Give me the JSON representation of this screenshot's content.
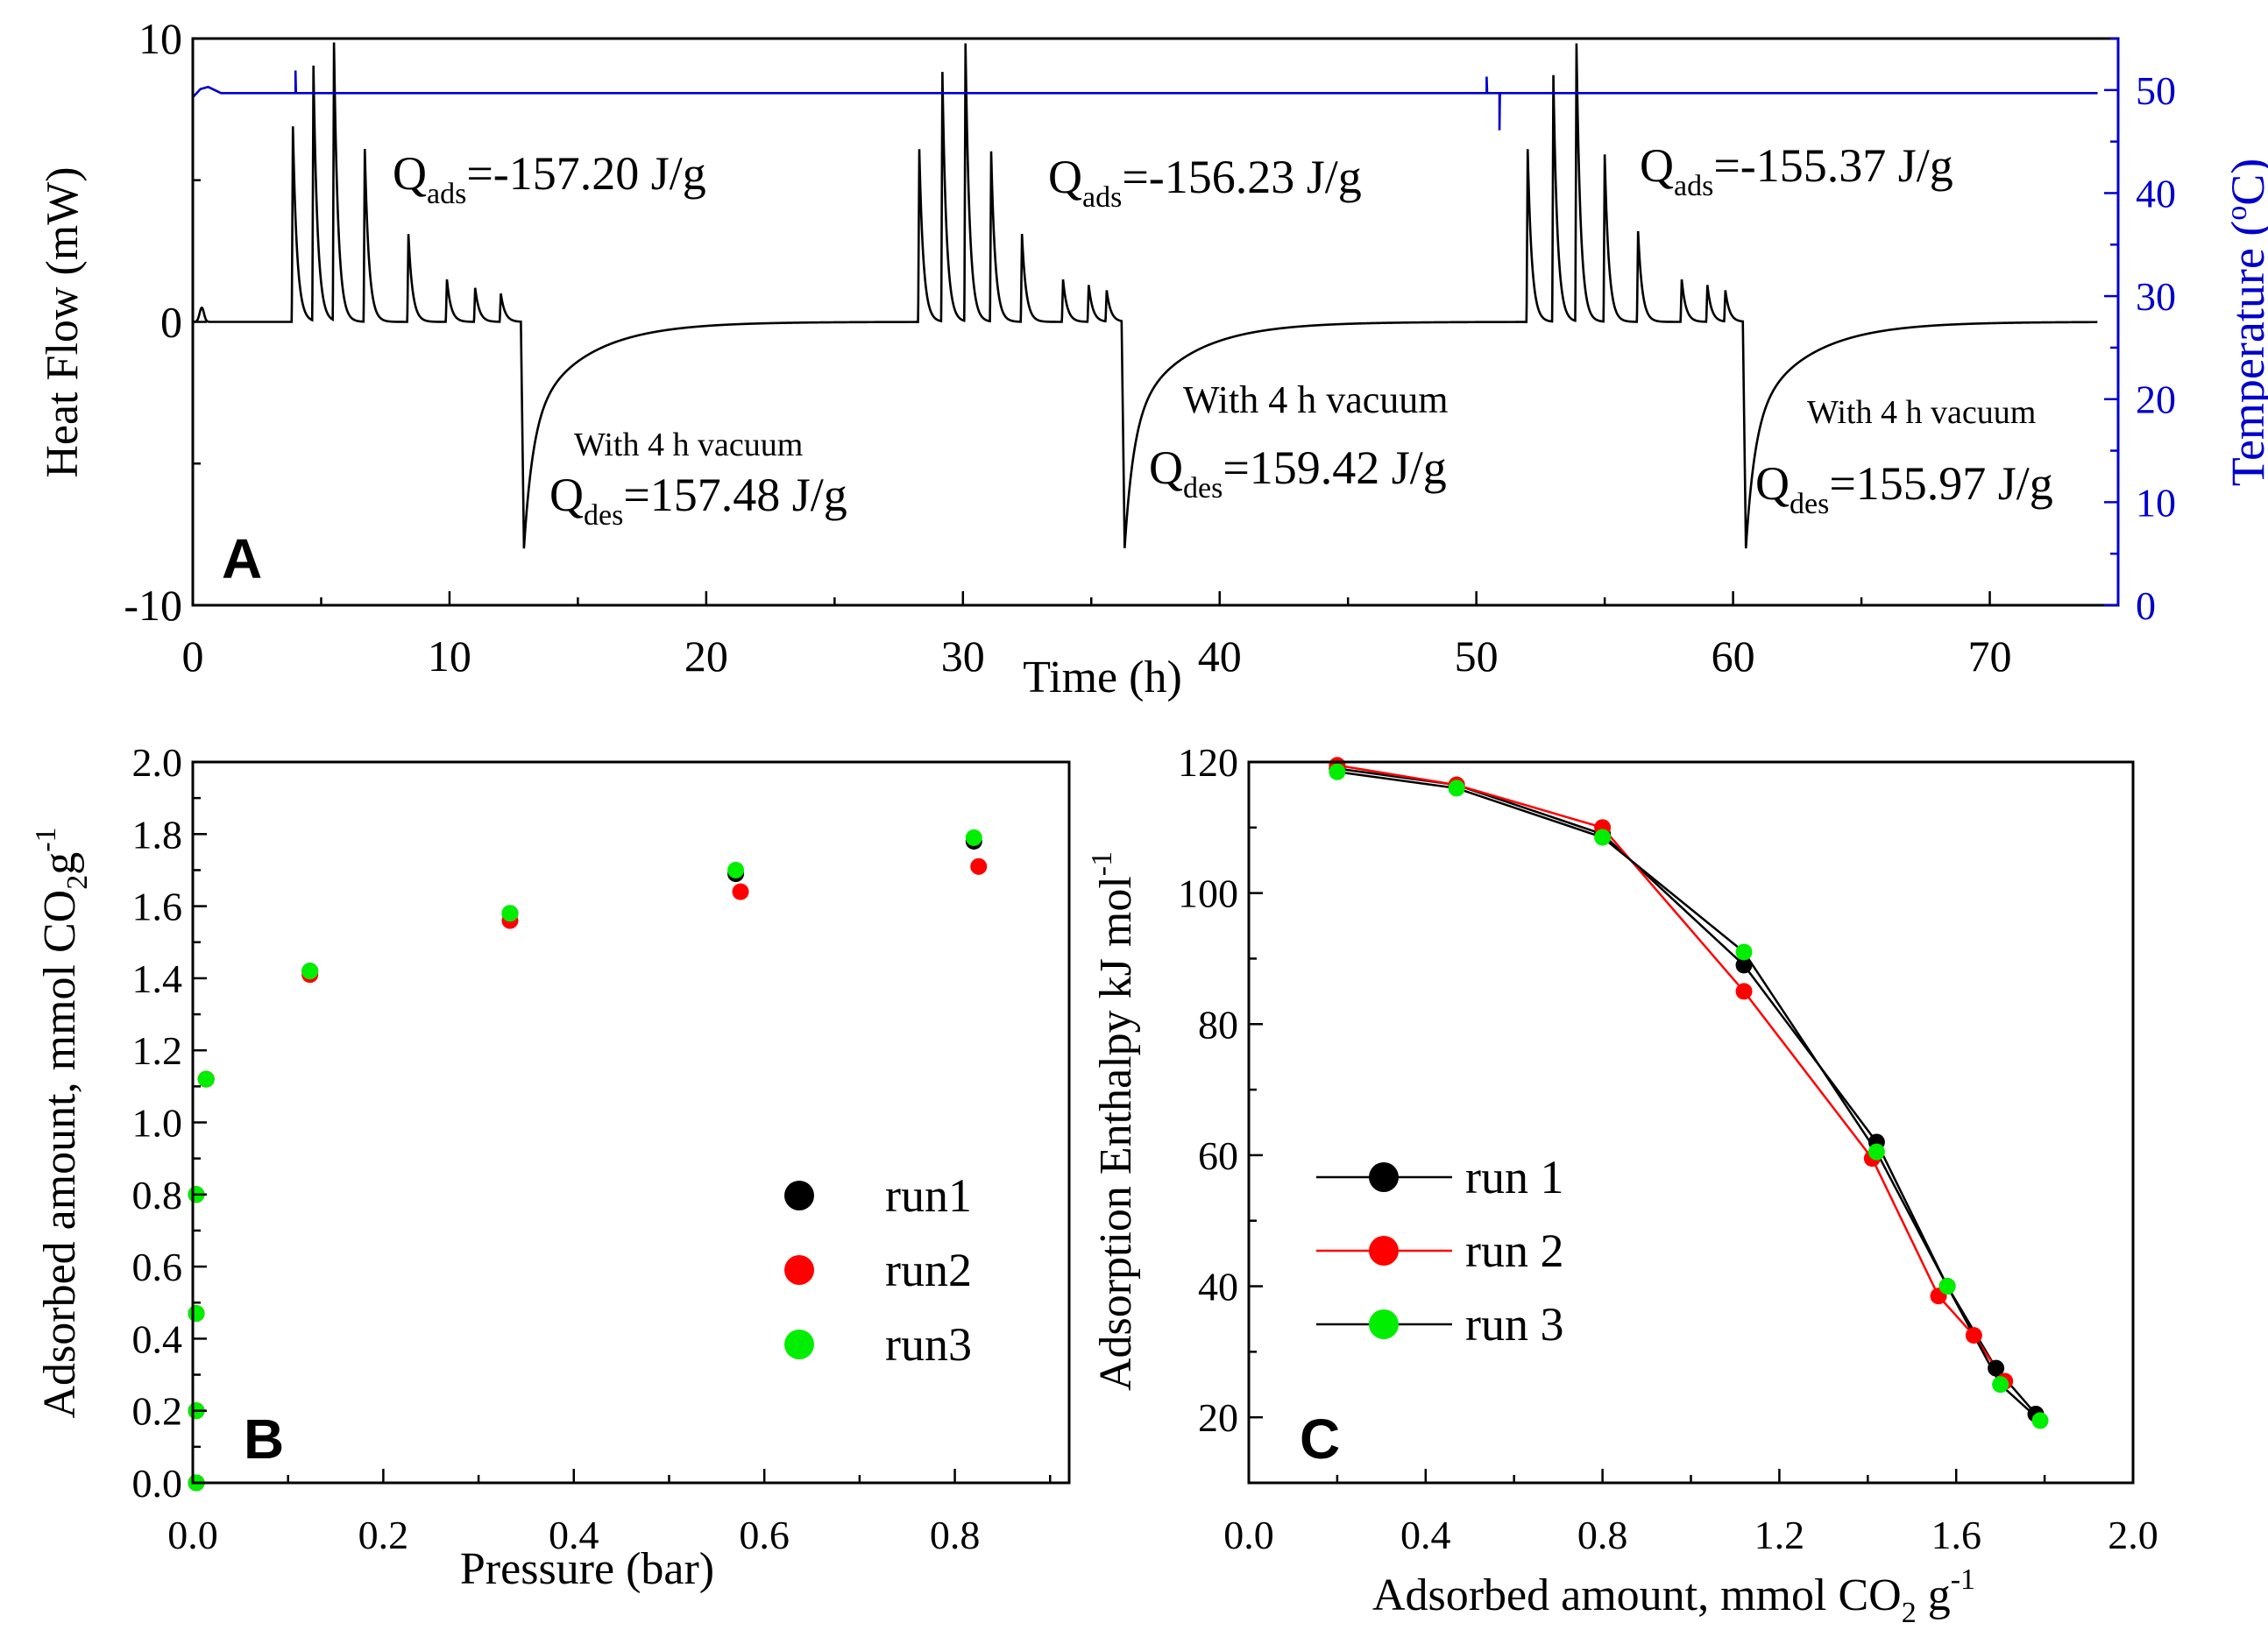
{
  "chart_data": [
    {
      "id": "A",
      "type": "line",
      "panel_label": "A",
      "xlabel": "Time (h)",
      "ylabel": "Heat Flow (mW)",
      "y2label_main": "Temperature (",
      "y2label_sup": "o",
      "y2label_end": "C)",
      "xlim": [
        0,
        75
      ],
      "ylim": [
        -10,
        10
      ],
      "y2lim": [
        0,
        55
      ],
      "xticks": [
        0,
        10,
        20,
        30,
        40,
        50,
        60,
        70
      ],
      "yticks": [
        -10,
        0,
        10
      ],
      "y2ticks": [
        0,
        10,
        20,
        30,
        40,
        50
      ],
      "temperature_baseline": 49.7,
      "cycles": [
        {
          "start": 3.6,
          "peak_times": [
            3.9,
            4.7,
            5.5,
            6.7,
            8.4,
            9.9,
            11.0,
            12.0
          ],
          "peak_heights": [
            6.9,
            9.0,
            9.8,
            6.1,
            3.1,
            1.5,
            1.2,
            1.0
          ],
          "desorption_time": 12.9,
          "desorption_min": -8.0
        },
        {
          "start": 28.0,
          "peak_times": [
            28.3,
            29.2,
            30.1,
            31.1,
            32.3,
            33.9,
            34.9,
            35.6
          ],
          "peak_heights": [
            6.1,
            8.8,
            9.8,
            6.0,
            3.1,
            1.5,
            1.3,
            1.1
          ],
          "desorption_time": 36.3,
          "desorption_min": -8.0
        },
        {
          "start": 51.7,
          "peak_times": [
            52.0,
            53.0,
            53.9,
            55.0,
            56.3,
            58.0,
            59.0,
            59.7
          ],
          "peak_heights": [
            6.1,
            8.7,
            9.8,
            5.9,
            3.2,
            1.5,
            1.3,
            1.1
          ],
          "desorption_time": 60.5,
          "desorption_min": -8.0
        }
      ],
      "annotations": [
        {
          "main": "Q",
          "sub": "ads",
          "value": "=-157.20 J/g"
        },
        {
          "main": "Q",
          "sub": "ads",
          "value": "=-156.23 J/g"
        },
        {
          "main": "Q",
          "sub": "ads",
          "value": "=-155.37 J/g"
        },
        {
          "main": "Q",
          "sub": "des",
          "value": "=157.48 J/g",
          "note": "With 4 h vacuum"
        },
        {
          "main": "Q",
          "sub": "des",
          "value": "=159.42 J/g",
          "note": "With 4 h vacuum"
        },
        {
          "main": "Q",
          "sub": "des",
          "value": "=155.97 J/g",
          "note": "With 4 h vacuum"
        }
      ],
      "colors": {
        "heat_flow": "#000000",
        "temperature": "#0000cc"
      }
    },
    {
      "id": "B",
      "type": "scatter",
      "panel_label": "B",
      "xlabel": "Pressure (bar)",
      "ylabel_main": "Adsorbed amount, mmol CO",
      "ylabel_sub": "2",
      "ylabel_end": "g",
      "ylabel_sup": "-1",
      "xlim": [
        0,
        0.92
      ],
      "ylim": [
        0,
        2.0
      ],
      "xticks": [
        0.0,
        0.2,
        0.4,
        0.6,
        0.8
      ],
      "yticks": [
        0.0,
        0.2,
        0.4,
        0.6,
        0.8,
        1.0,
        1.2,
        1.4,
        1.6,
        1.8,
        2.0
      ],
      "series": [
        {
          "name": "run1",
          "color": "#000000",
          "x": [
            0.0,
            0.0,
            0.0,
            0.0,
            0.014,
            0.123,
            0.333,
            0.57,
            0.82
          ],
          "y": [
            0.0,
            0.2,
            0.47,
            0.8,
            1.12,
            1.42,
            1.58,
            1.69,
            1.78
          ]
        },
        {
          "name": "run2",
          "color": "#ff0000",
          "x": [
            0.0,
            0.0,
            0.0,
            0.0,
            0.014,
            0.123,
            0.333,
            0.575,
            0.825
          ],
          "y": [
            0.0,
            0.2,
            0.47,
            0.8,
            1.12,
            1.41,
            1.56,
            1.64,
            1.71
          ]
        },
        {
          "name": "run3",
          "color": "#00ee00",
          "x": [
            0.0,
            0.0,
            0.0,
            0.0,
            0.014,
            0.123,
            0.333,
            0.57,
            0.82
          ],
          "y": [
            0.0,
            0.2,
            0.47,
            0.8,
            1.12,
            1.42,
            1.58,
            1.7,
            1.79
          ]
        }
      ],
      "legend": [
        "run1",
        "run2",
        "run3"
      ]
    },
    {
      "id": "C",
      "type": "line",
      "panel_label": "C",
      "xlabel_main": "Adsorbed amount, mmol CO",
      "xlabel_sub": "2",
      "xlabel_end": " g",
      "xlabel_sup": "-1",
      "ylabel_main": "Adsorption Enthalpy kJ mol",
      "ylabel_sup": "-1",
      "xlim": [
        0.0,
        2.0
      ],
      "ylim": [
        10,
        120
      ],
      "xticks": [
        0.0,
        0.4,
        0.8,
        1.2,
        1.6,
        2.0
      ],
      "yticks": [
        20,
        40,
        60,
        80,
        100,
        120
      ],
      "series": [
        {
          "name": "run 1",
          "color": "#000000",
          "x": [
            0.2,
            0.47,
            0.8,
            1.12,
            1.42,
            1.58,
            1.69,
            1.78
          ],
          "y": [
            119,
            116.5,
            109,
            89,
            62,
            40,
            27.5,
            20.5
          ]
        },
        {
          "name": "run 2",
          "color": "#ff0000",
          "x": [
            0.2,
            0.47,
            0.8,
            1.12,
            1.41,
            1.56,
            1.64,
            1.71
          ],
          "y": [
            119.5,
            116.5,
            110,
            85,
            59.5,
            38.5,
            32.5,
            25.5
          ]
        },
        {
          "name": "run 3",
          "color": "#00ee00",
          "x": [
            0.2,
            0.47,
            0.8,
            1.12,
            1.42,
            1.58,
            1.7,
            1.79
          ],
          "y": [
            118.5,
            116,
            108.5,
            91,
            60.5,
            40,
            25,
            19.5
          ]
        }
      ],
      "legend": [
        "run 1",
        "run 2",
        "run 3"
      ]
    }
  ]
}
